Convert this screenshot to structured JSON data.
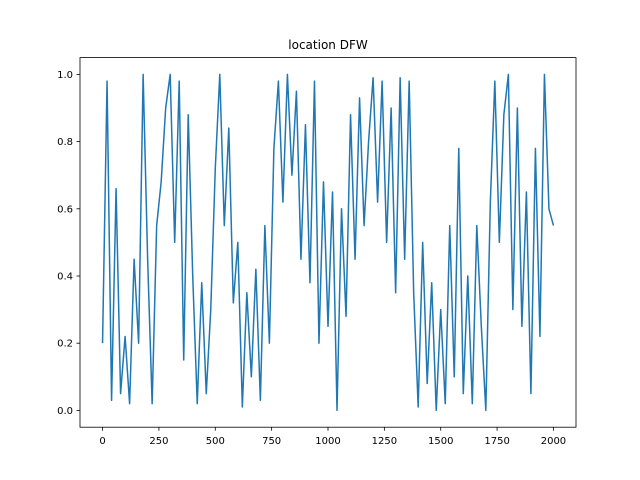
{
  "chart_data": {
    "type": "line",
    "title": "location DFW",
    "color": "#1f77b4",
    "x": [
      0,
      20,
      40,
      60,
      80,
      100,
      120,
      140,
      160,
      180,
      200,
      220,
      240,
      260,
      280,
      300,
      320,
      340,
      360,
      380,
      400,
      420,
      440,
      460,
      480,
      500,
      520,
      540,
      560,
      580,
      600,
      620,
      640,
      660,
      680,
      700,
      720,
      740,
      760,
      780,
      800,
      820,
      840,
      860,
      880,
      900,
      920,
      940,
      960,
      980,
      1000,
      1020,
      1040,
      1060,
      1080,
      1100,
      1120,
      1140,
      1160,
      1180,
      1200,
      1220,
      1240,
      1260,
      1280,
      1300,
      1320,
      1340,
      1360,
      1380,
      1400,
      1420,
      1440,
      1460,
      1480,
      1500,
      1520,
      1540,
      1560,
      1580,
      1600,
      1620,
      1640,
      1660,
      1680,
      1700,
      1720,
      1740,
      1760,
      1780,
      1800,
      1820,
      1840,
      1860,
      1880,
      1900,
      1920,
      1940,
      1960,
      1980,
      2000
    ],
    "values": [
      0.2,
      0.98,
      0.03,
      0.66,
      0.05,
      0.22,
      0.02,
      0.45,
      0.2,
      1.0,
      0.45,
      0.02,
      0.55,
      0.68,
      0.9,
      1.0,
      0.5,
      0.98,
      0.15,
      0.88,
      0.4,
      0.02,
      0.38,
      0.05,
      0.3,
      0.72,
      1.0,
      0.55,
      0.84,
      0.32,
      0.5,
      0.01,
      0.35,
      0.1,
      0.42,
      0.03,
      0.55,
      0.2,
      0.78,
      0.98,
      0.62,
      1.0,
      0.7,
      0.95,
      0.45,
      0.85,
      0.38,
      0.98,
      0.2,
      0.68,
      0.25,
      0.65,
      0.0,
      0.6,
      0.28,
      0.88,
      0.45,
      0.93,
      0.55,
      0.8,
      0.99,
      0.62,
      0.98,
      0.5,
      0.9,
      0.35,
      0.99,
      0.45,
      0.98,
      0.35,
      0.01,
      0.5,
      0.08,
      0.38,
      0.0,
      0.3,
      0.02,
      0.55,
      0.1,
      0.78,
      0.05,
      0.4,
      0.02,
      0.55,
      0.25,
      0.0,
      0.62,
      0.98,
      0.5,
      0.88,
      1.0,
      0.3,
      0.9,
      0.25,
      0.65,
      0.05,
      0.78,
      0.22,
      1.0,
      0.6,
      0.55
    ],
    "xlim": [
      -100,
      2100
    ],
    "ylim": [
      -0.05,
      1.05
    ],
    "xticks": [
      0,
      250,
      500,
      750,
      1000,
      1250,
      1500,
      1750,
      2000
    ],
    "yticks": [
      {
        "value": 0,
        "label": "0.0"
      },
      {
        "value": 0.2,
        "label": "0.2"
      },
      {
        "value": 0.4,
        "label": "0.4"
      },
      {
        "value": 0.6,
        "label": "0.6"
      },
      {
        "value": 0.8,
        "label": "0.8"
      },
      {
        "value": 1,
        "label": "1.0"
      }
    ]
  }
}
